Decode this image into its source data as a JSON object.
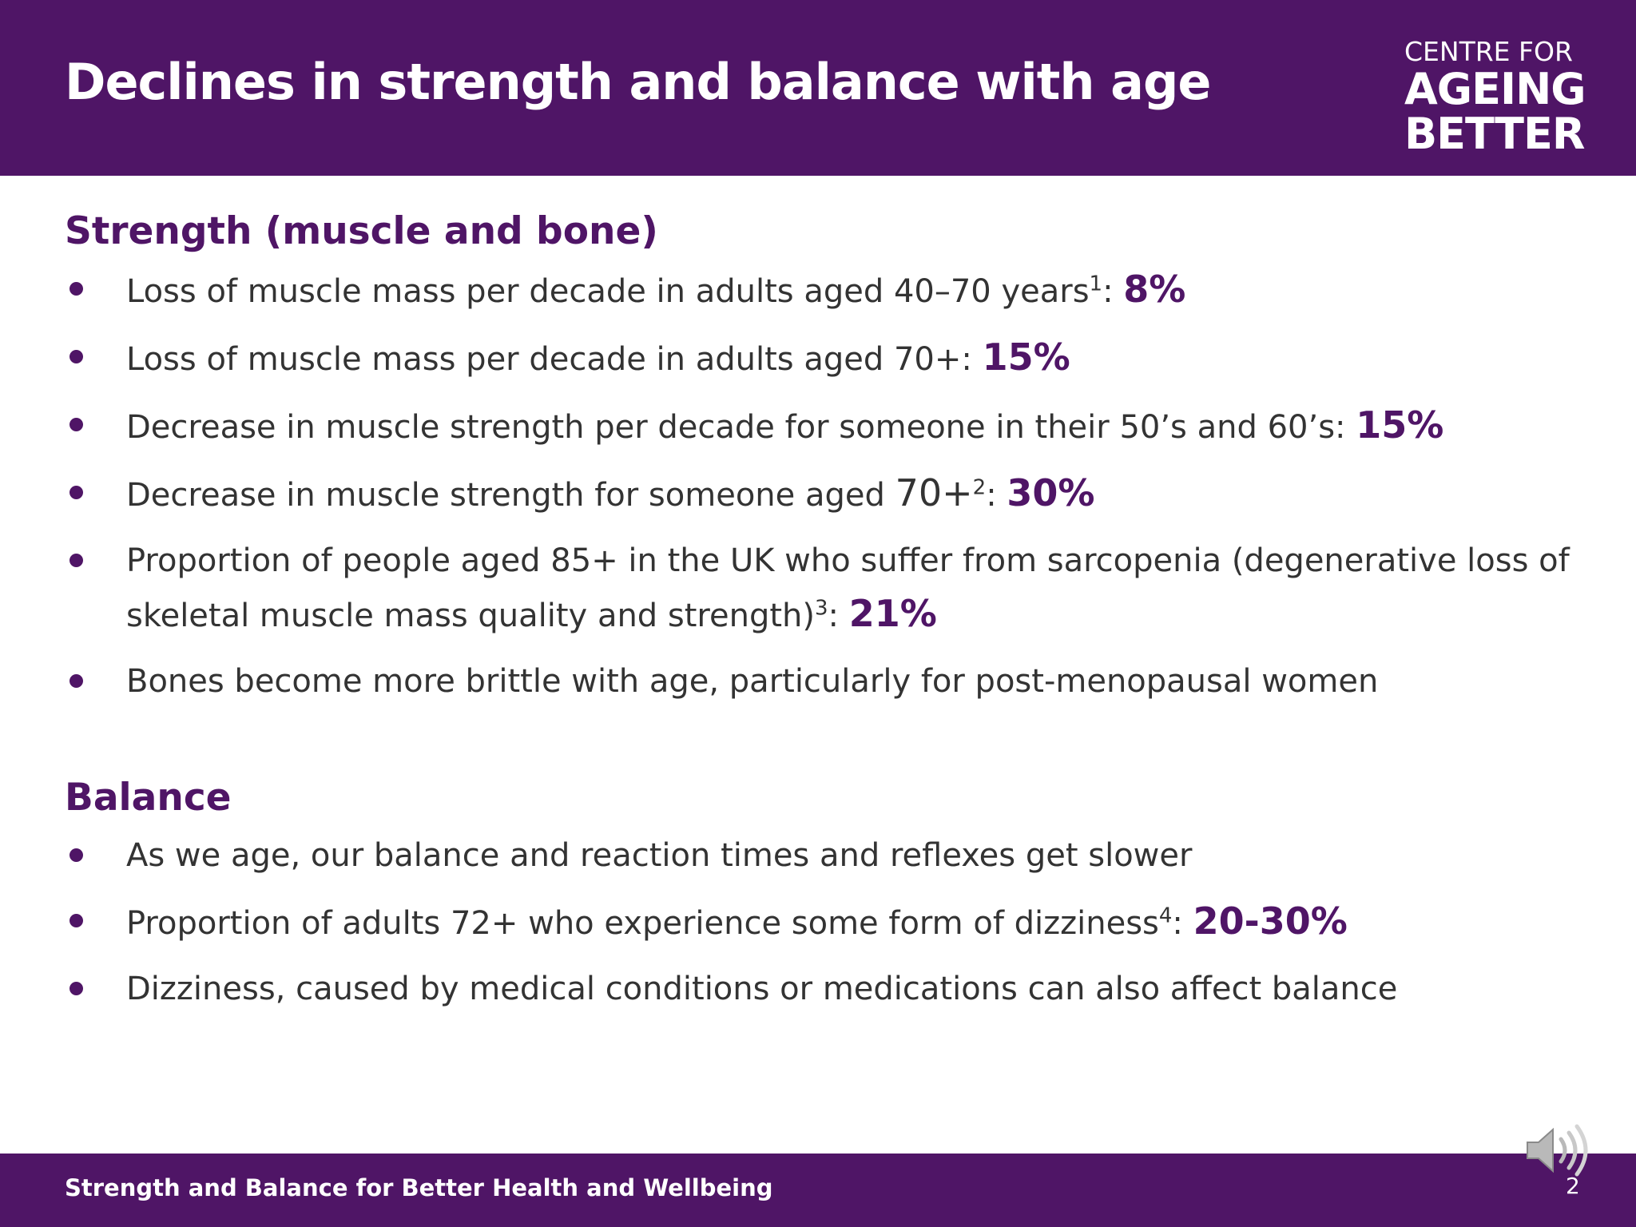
{
  "header": {
    "title": "Declines in strength and balance with age",
    "logo": {
      "line1": "CENTRE FOR",
      "line2": "AGEING",
      "line3": "BETTER"
    }
  },
  "strength": {
    "heading": "Strength (muscle and bone)",
    "items": [
      {
        "text": "Loss of muscle mass per decade in adults aged 40–70 years",
        "footnote": "1",
        "suffix": ": ",
        "stat": "8%"
      },
      {
        "text": "Loss of muscle mass per decade in adults aged 70+: ",
        "stat": "15%"
      },
      {
        "text": "Decrease in muscle strength per decade for someone in their 50’s and 60’s: ",
        "stat": "15%"
      },
      {
        "text": "Decrease in muscle strength for someone aged ",
        "big": "70+",
        "footnote": "2",
        "suffix": ": ",
        "stat": "30%"
      },
      {
        "text": "Proportion of people aged 85+ in the UK who suffer from sarcopenia (degenerative loss of skeletal muscle mass quality and strength)",
        "footnote": "3",
        "suffix": ":  ",
        "stat": "21%"
      },
      {
        "text": "Bones become more brittle with age, particularly for post-menopausal women"
      }
    ]
  },
  "balance": {
    "heading": "Balance",
    "items": [
      {
        "text": "As we age, our balance and reaction times and reflexes get slower"
      },
      {
        "text": "Proportion of adults 72+ who experience some form of dizziness",
        "footnote": "4",
        "suffix": ": ",
        "stat": "20-30%"
      },
      {
        "text": "Dizziness, caused by medical conditions or medications can also affect balance"
      }
    ]
  },
  "footer": {
    "text": "Strength and Balance for Better Health and Wellbeing",
    "page_number": "2"
  },
  "colors": {
    "brand_purple": "#4f1566",
    "body_text": "#333333"
  },
  "icons": {
    "audio": "speaker-icon"
  }
}
